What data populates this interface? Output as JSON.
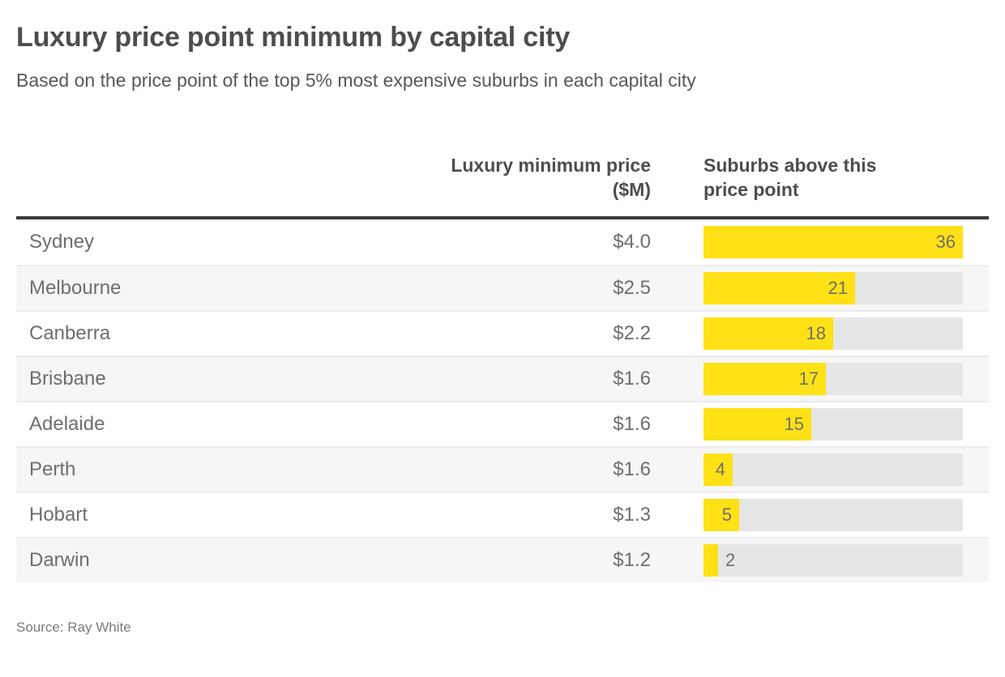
{
  "colors": {
    "accent_yellow": "#FFE115",
    "bar_track": "#E6E6E6",
    "row_alt_background": "#F6F6F6",
    "header_rule": "#3B3B3B"
  },
  "header": {
    "title": "Luxury price point minimum by capital city",
    "subtitle": "Based on the price point of the top 5% most expensive suburbs in each capital city"
  },
  "table": {
    "price_column_header": [
      "Luxury minimum price",
      "($M)"
    ],
    "bar_column_header": [
      "Suburbs above this",
      "price point"
    ],
    "rows": [
      {
        "city": "Sydney",
        "price": "$4.0",
        "suburbs": 36
      },
      {
        "city": "Melbourne",
        "price": "$2.5",
        "suburbs": 21
      },
      {
        "city": "Canberra",
        "price": "$2.2",
        "suburbs": 18
      },
      {
        "city": "Brisbane",
        "price": "$1.6",
        "suburbs": 17
      },
      {
        "city": "Adelaide",
        "price": "$1.6",
        "suburbs": 15
      },
      {
        "city": "Perth",
        "price": "$1.6",
        "suburbs": 4
      },
      {
        "city": "Hobart",
        "price": "$1.3",
        "suburbs": 5
      },
      {
        "city": "Darwin",
        "price": "$1.2",
        "suburbs": 2
      }
    ]
  },
  "footer": {
    "source": "Source: Ray White"
  },
  "chart_data": {
    "type": "bar",
    "orientation": "horizontal",
    "title": "Luxury price point minimum by capital city",
    "subtitle": "Based on the price point of the top 5% most expensive suburbs in each capital city",
    "categories": [
      "Sydney",
      "Melbourne",
      "Canberra",
      "Brisbane",
      "Adelaide",
      "Perth",
      "Hobart",
      "Darwin"
    ],
    "series": [
      {
        "name": "Luxury minimum price ($M)",
        "display": "text",
        "values": [
          4.0,
          2.5,
          2.2,
          1.6,
          1.6,
          1.6,
          1.3,
          1.2
        ]
      },
      {
        "name": "Suburbs above this price point",
        "display": "bar",
        "values": [
          36,
          21,
          18,
          17,
          15,
          4,
          5,
          2
        ]
      }
    ],
    "xlim": [
      0,
      36
    ],
    "bar_color": "#FFE115",
    "grid": false,
    "legend": "none",
    "source": "Source: Ray White"
  }
}
